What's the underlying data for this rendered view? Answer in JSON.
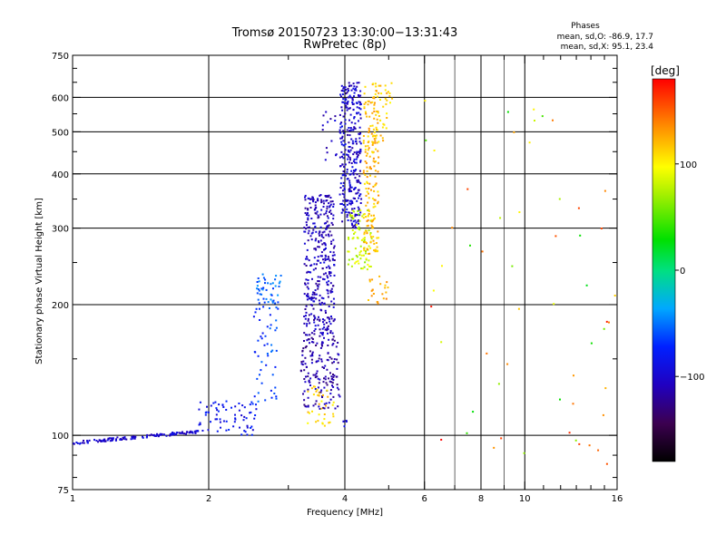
{
  "chart_data": {
    "type": "scatter",
    "title": "Tromsø 20150723 13:30:00−13:31:43",
    "subtitle": "RwPretec (8p)",
    "phase_info": {
      "heading": "Phases",
      "line1": "mean, sd,O:  -86.9, 17.7",
      "line2": "mean, sd,X:  95.1, 23.4"
    },
    "xlabel": "Frequency [MHz]",
    "ylabel": "Stationary phase Virtual Height [km]",
    "x_scale": "log",
    "y_scale": "log",
    "xlim": [
      1,
      16
    ],
    "ylim": [
      75,
      750
    ],
    "x_ticks": [
      1,
      2,
      4,
      6,
      8,
      10,
      16
    ],
    "x_minor_ticks": [
      3,
      5,
      7,
      9,
      11,
      12,
      13,
      14,
      15
    ],
    "x_major_gridlines": [
      2,
      4,
      6,
      8,
      10
    ],
    "x_minor_gridlines": [
      7,
      9
    ],
    "y_ticks": [
      75,
      100,
      200,
      300,
      400,
      500,
      600,
      750
    ],
    "y_gridlines": [
      100,
      200,
      300,
      400,
      500,
      600
    ],
    "grid": true,
    "colorbar": {
      "label": "[deg]",
      "range": [
        -180,
        180
      ],
      "ticks": [
        100,
        0,
        -100
      ]
    },
    "series": [
      {
        "x_range": [
          1.0,
          1.9
        ],
        "y_range": [
          96,
          102
        ],
        "phase": -100,
        "count": 140,
        "shape": "rising-trace"
      },
      {
        "x_range": [
          1.9,
          2.55
        ],
        "y_range": [
          100,
          120
        ],
        "phase": -85,
        "count": 70,
        "shape": "band"
      },
      {
        "x_range": [
          2.5,
          2.85
        ],
        "y_range": [
          118,
          200
        ],
        "phase": -65,
        "count": 45,
        "shape": "band"
      },
      {
        "x_range": [
          2.55,
          2.9
        ],
        "y_range": [
          195,
          235
        ],
        "phase": -55,
        "count": 50,
        "shape": "cluster"
      },
      {
        "x_range": [
          3.2,
          3.9
        ],
        "y_range": [
          115,
          170
        ],
        "phase": -115,
        "count": 160,
        "shape": "band"
      },
      {
        "x_range": [
          3.25,
          3.8
        ],
        "y_range": [
          170,
          360
        ],
        "phase": -108,
        "count": 360,
        "shape": "band"
      },
      {
        "x_range": [
          3.55,
          3.85
        ],
        "y_range": [
          420,
          560
        ],
        "phase": -105,
        "count": 14,
        "shape": "band"
      },
      {
        "x_range": [
          3.9,
          4.35
        ],
        "y_range": [
          300,
          650
        ],
        "phase": -102,
        "count": 320,
        "shape": "band"
      },
      {
        "x_range": [
          4.05,
          4.6
        ],
        "y_range": [
          240,
          330
        ],
        "phase": 80,
        "count": 80,
        "shape": "band"
      },
      {
        "x_range": [
          4.4,
          4.75
        ],
        "y_range": [
          260,
          650
        ],
        "phase": 120,
        "count": 170,
        "shape": "band"
      },
      {
        "x_range": [
          4.6,
          5.1
        ],
        "y_range": [
          470,
          650
        ],
        "phase": 115,
        "count": 45,
        "shape": "band"
      },
      {
        "x_range": [
          4.5,
          5.0
        ],
        "y_range": [
          200,
          235
        ],
        "phase": 130,
        "count": 22,
        "shape": "band"
      },
      {
        "x_range": [
          3.3,
          3.8
        ],
        "y_range": [
          105,
          130
        ],
        "phase": 110,
        "count": 35,
        "shape": "band"
      },
      {
        "x_range": [
          3.95,
          4.05
        ],
        "y_range": [
          104,
          110
        ],
        "phase": -100,
        "count": 5,
        "shape": "band"
      },
      {
        "x_range": [
          6.0,
          16.0
        ],
        "y_range": [
          85,
          650
        ],
        "phase": 100,
        "count": 55,
        "shape": "sparse"
      }
    ]
  }
}
